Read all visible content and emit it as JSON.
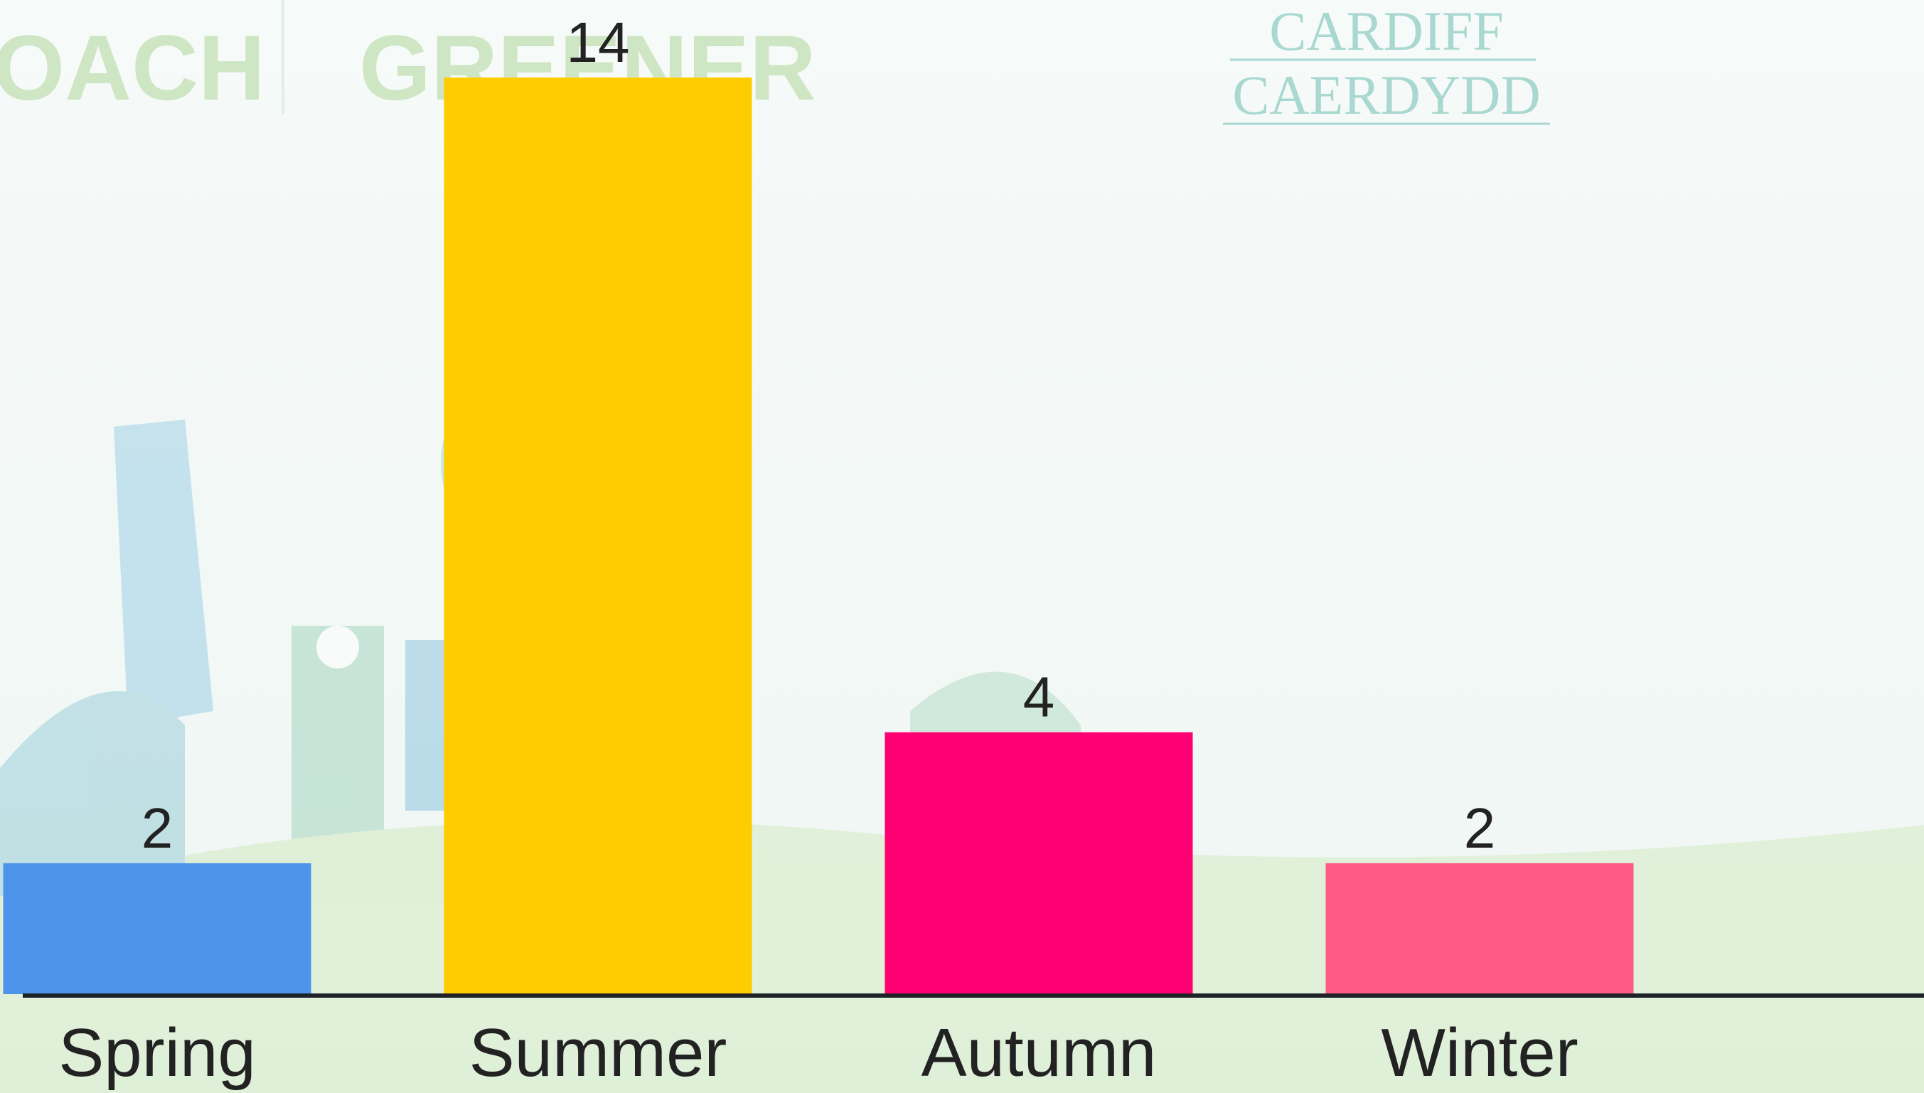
{
  "background_text": [
    "OACH",
    "GREENER"
  ],
  "logo": [
    "CARDIFF",
    "CAERDYDD"
  ],
  "chart_data": {
    "type": "bar",
    "categories": [
      "Spring",
      "Summer",
      "Autumn",
      "Winter"
    ],
    "values": [
      2,
      14,
      4,
      2
    ],
    "colors": [
      "#4d94ea",
      "#ffcc00",
      "#ff0072",
      "#ff5a85"
    ]
  }
}
